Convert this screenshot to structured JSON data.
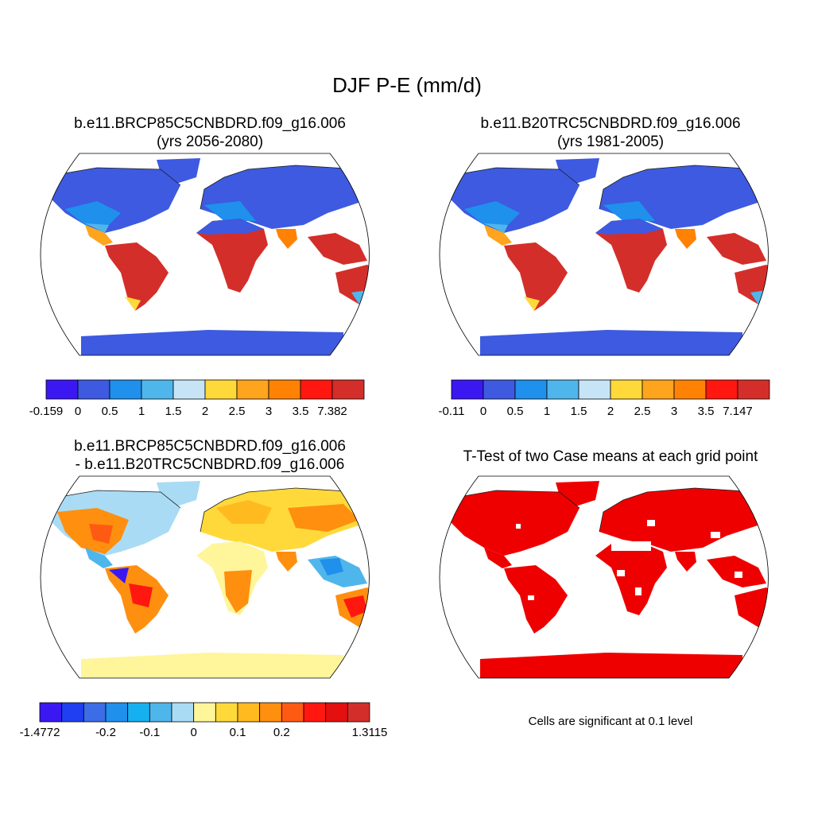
{
  "figure": {
    "title": "DJF P-E (mm/d)"
  },
  "panels": {
    "top_left": {
      "line1": "b.e11.BRCP85C5CNBDRD.f09_g16.006",
      "line2": "(yrs 2056-2080)"
    },
    "top_right": {
      "line1": "b.e11.B20TRC5CNBDRD.f09_g16.006",
      "line2": "(yrs 1981-2005)"
    },
    "bottom_left": {
      "line1": "b.e11.BRCP85C5CNBDRD.f09_g16.006",
      "line2": "- b.e11.B20TRC5CNBDRD.f09_g16.006"
    },
    "bottom_right": {
      "line1": "T-Test of two Case means at each grid point",
      "note": "Cells are significant at 0.1 level"
    }
  },
  "colorbars": {
    "top_left": {
      "colors": [
        "#3b18f2",
        "#3d5ae0",
        "#1f90ec",
        "#4fb6ec",
        "#c7e4f7",
        "#ffd93a",
        "#ffa41d",
        "#ff8205",
        "#ff1710",
        "#d42e2a"
      ],
      "labels": [
        "-0.159",
        "0",
        "0.5",
        "1",
        "1.5",
        "2",
        "2.5",
        "3",
        "3.5",
        "7.382"
      ]
    },
    "top_right": {
      "colors": [
        "#3b18f2",
        "#3d5ae0",
        "#1f90ec",
        "#4fb6ec",
        "#c7e4f7",
        "#ffd93a",
        "#ffa41d",
        "#ff8205",
        "#ff1710",
        "#d42e2a"
      ],
      "labels": [
        "-0.11",
        "0",
        "0.5",
        "1",
        "1.5",
        "2",
        "2.5",
        "3",
        "3.5",
        "7.147"
      ]
    },
    "bottom_left": {
      "colors": [
        "#3b18f2",
        "#1f3ff0",
        "#3d6de6",
        "#1f90ec",
        "#16b0f0",
        "#4fb6ec",
        "#a9dbf5",
        "#fff59a",
        "#ffd93a",
        "#ffba1f",
        "#ff8f0f",
        "#ff5a14",
        "#ff1710",
        "#e40f0f",
        "#d42e2a"
      ],
      "labels": [
        "-1.4772",
        "-0.2",
        "-0.1",
        "0",
        "0.1",
        "0.2",
        "1.3115"
      ],
      "label_slots": [
        0,
        3,
        5,
        7,
        9,
        11,
        15
      ]
    }
  }
}
